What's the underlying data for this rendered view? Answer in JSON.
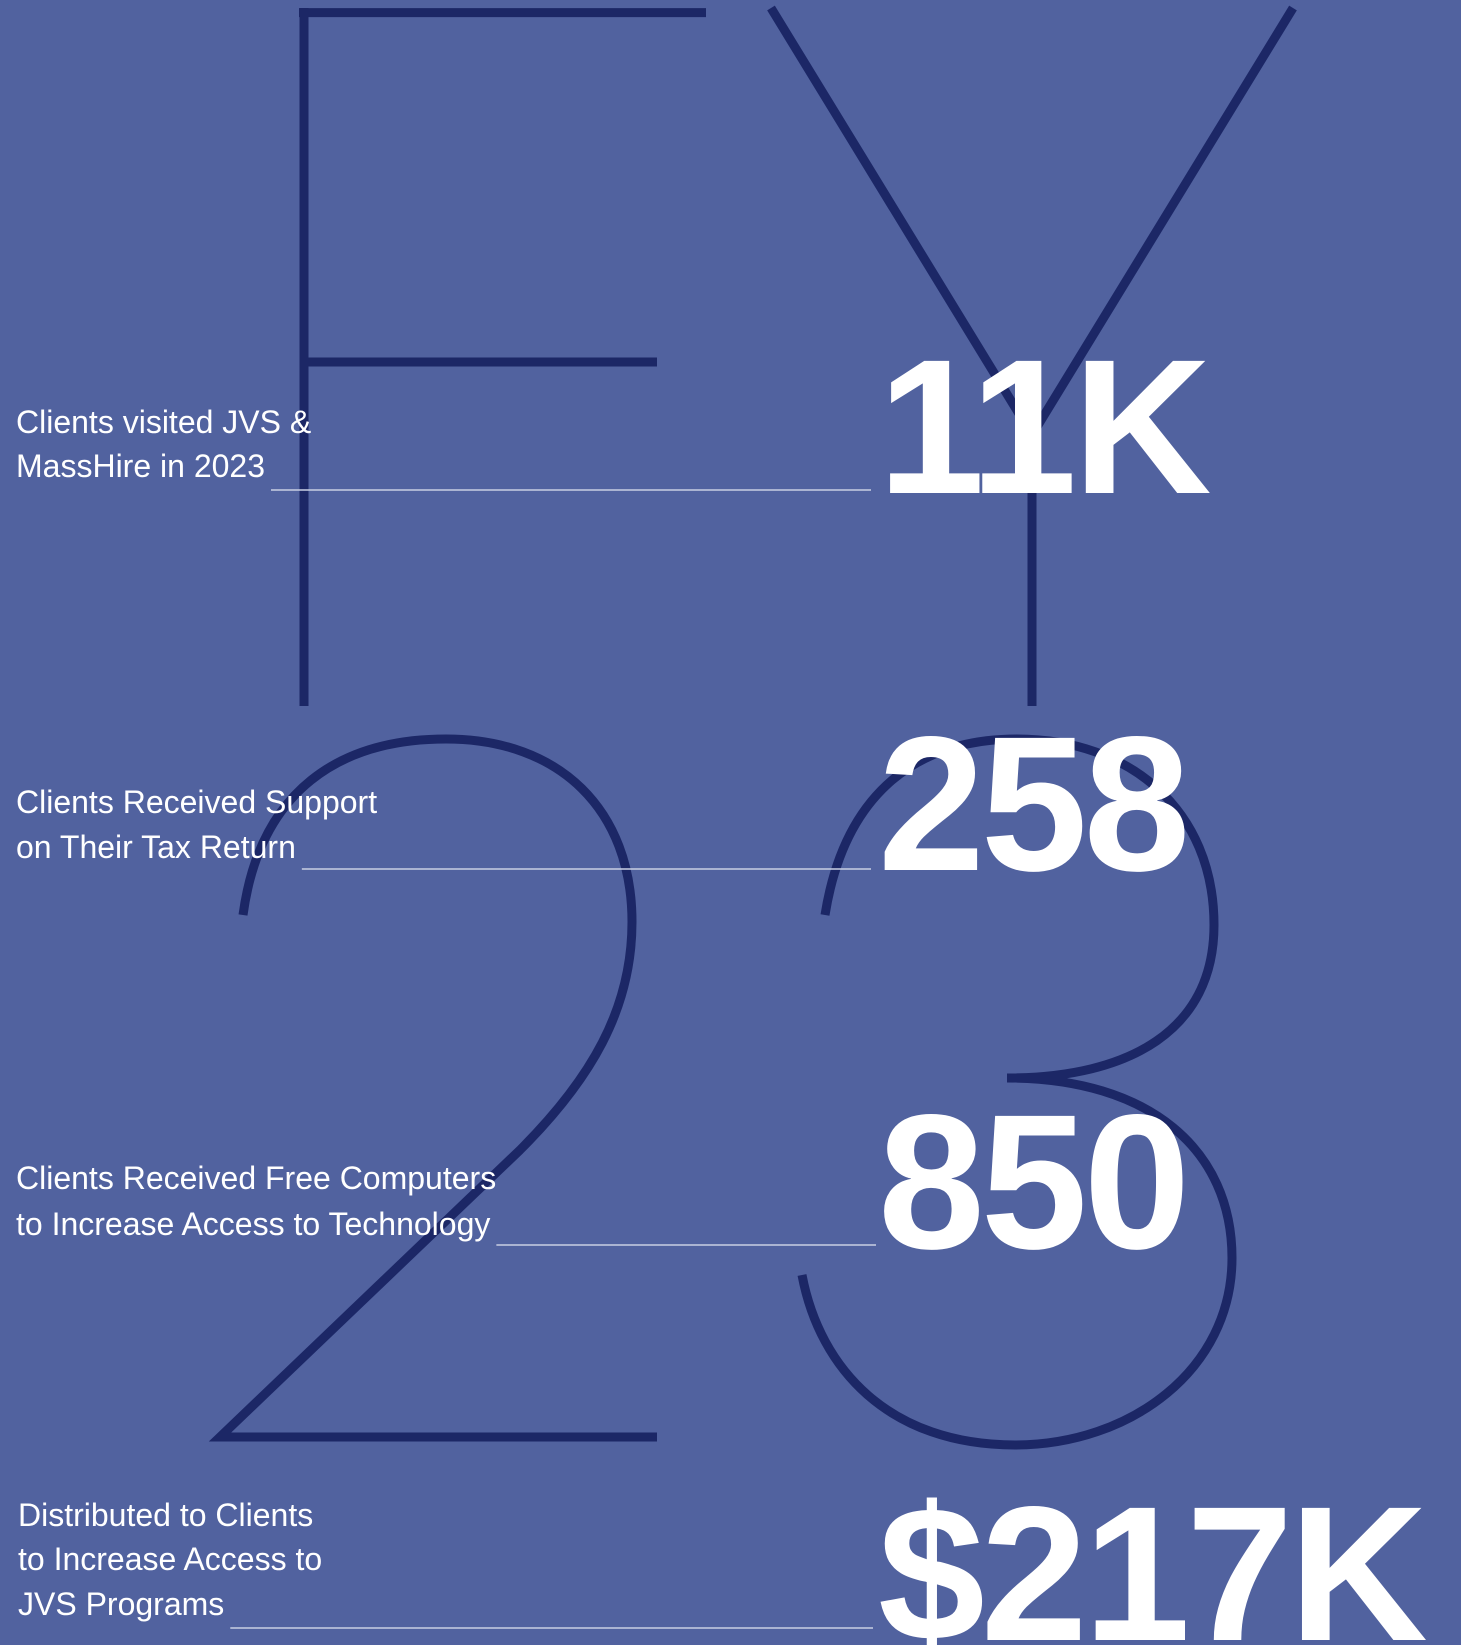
{
  "stats": [
    {
      "figure": "11K",
      "label": [
        "Clients visited JVS &",
        "MassHire in 2023"
      ]
    },
    {
      "figure": "258",
      "label": [
        "Clients Received Support",
        "on Their Tax Return"
      ]
    },
    {
      "figure": "850",
      "label": [
        "Clients Received Free Computers",
        "to Increase Access to Technology"
      ]
    },
    {
      "figure": "$217K",
      "label": [
        "Distributed to Clients",
        "to Increase Access to",
        "JVS Programs"
      ]
    }
  ]
}
